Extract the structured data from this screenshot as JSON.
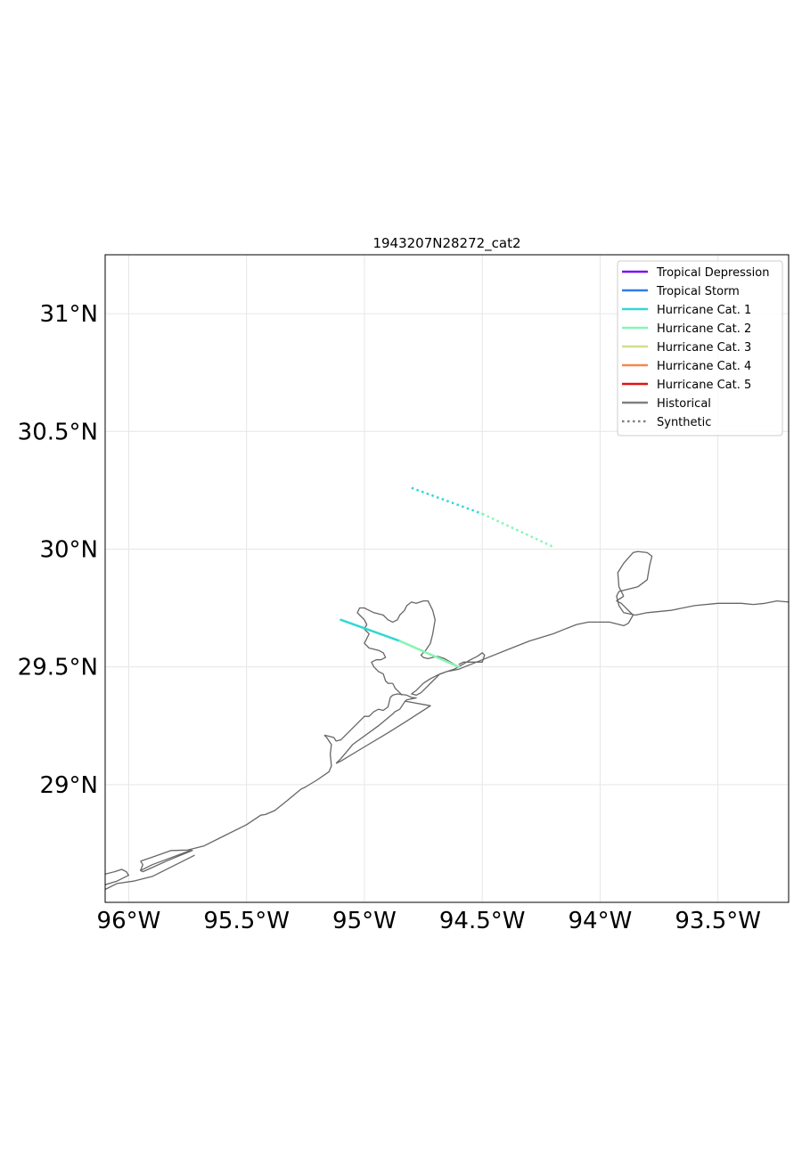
{
  "chart_data": {
    "type": "map",
    "title": "1943207N28272_cat2",
    "xlim": [
      -96.1,
      -93.2
    ],
    "ylim": [
      28.5,
      31.25
    ],
    "x_ticks": [
      {
        "value": -96.0,
        "label": "96°W"
      },
      {
        "value": -95.5,
        "label": "95.5°W"
      },
      {
        "value": -95.0,
        "label": "95°W"
      },
      {
        "value": -94.5,
        "label": "94.5°W"
      },
      {
        "value": -94.0,
        "label": "94°W"
      },
      {
        "value": -93.5,
        "label": "93.5°W"
      }
    ],
    "y_ticks": [
      {
        "value": 29.0,
        "label": "29°N"
      },
      {
        "value": 29.5,
        "label": "29.5°N"
      },
      {
        "value": 30.0,
        "label": "30°N"
      },
      {
        "value": 30.5,
        "label": "30.5°N"
      },
      {
        "value": 31.0,
        "label": "31°N"
      }
    ],
    "grid": true,
    "legend_position": "top-right",
    "legend": [
      {
        "label": "Tropical Depression",
        "color": "#7a0ff0",
        "style": "solid"
      },
      {
        "label": "Tropical Storm",
        "color": "#2f7fe6",
        "style": "solid"
      },
      {
        "label": "Hurricane Cat. 1",
        "color": "#33d6d6",
        "style": "solid"
      },
      {
        "label": "Hurricane Cat. 2",
        "color": "#86f5b3",
        "style": "solid"
      },
      {
        "label": "Hurricane Cat. 3",
        "color": "#cfe08f",
        "style": "solid"
      },
      {
        "label": "Hurricane Cat. 4",
        "color": "#f5884d",
        "style": "solid"
      },
      {
        "label": "Hurricane Cat. 5",
        "color": "#e01414",
        "style": "solid"
      },
      {
        "label": "Historical",
        "color": "#808080",
        "style": "solid"
      },
      {
        "label": "Synthetic",
        "color": "#808080",
        "style": "dotted"
      }
    ],
    "tracks": [
      {
        "name": "historical",
        "style": "solid",
        "segments": [
          {
            "from": [
              -95.1,
              29.7
            ],
            "to": [
              -94.85,
              29.61
            ],
            "color": "#33d6d6"
          },
          {
            "from": [
              -94.85,
              29.61
            ],
            "to": [
              -94.6,
              29.5
            ],
            "color": "#86f5b3"
          }
        ]
      },
      {
        "name": "synthetic",
        "style": "dotted",
        "segments": [
          {
            "from": [
              -94.8,
              30.26
            ],
            "to": [
              -94.5,
              30.15
            ],
            "color": "#33d6d6"
          },
          {
            "from": [
              -94.5,
              30.15
            ],
            "to": [
              -94.2,
              30.01
            ],
            "color": "#86f5b3"
          }
        ]
      }
    ],
    "coastlines": [
      [
        [
          -96.1,
          28.555
        ],
        [
          -96.05,
          28.58
        ],
        [
          -95.98,
          28.59
        ],
        [
          -95.9,
          28.61
        ],
        [
          -95.82,
          28.65
        ],
        [
          -95.72,
          28.7
        ]
      ],
      [
        [
          -96.1,
          28.62
        ],
        [
          -96.06,
          28.63
        ],
        [
          -96.03,
          28.64
        ],
        [
          -96.01,
          28.63
        ],
        [
          -96.0,
          28.615
        ],
        [
          -96.05,
          28.59
        ],
        [
          -96.1,
          28.575
        ]
      ],
      [
        [
          -95.95,
          28.635
        ],
        [
          -95.9,
          28.66
        ],
        [
          -95.82,
          28.69
        ],
        [
          -95.74,
          28.72
        ],
        [
          -95.73,
          28.72
        ],
        [
          -95.78,
          28.7
        ],
        [
          -95.84,
          28.675
        ],
        [
          -95.9,
          28.648
        ],
        [
          -95.94,
          28.63
        ],
        [
          -95.95,
          28.635
        ],
        [
          -95.94,
          28.66
        ],
        [
          -95.95,
          28.675
        ]
      ],
      [
        [
          -95.95,
          28.675
        ],
        [
          -95.89,
          28.695
        ],
        [
          -95.82,
          28.72
        ],
        [
          -95.75,
          28.722
        ],
        [
          -95.68,
          28.74
        ],
        [
          -95.6,
          28.78
        ],
        [
          -95.5,
          28.83
        ],
        [
          -95.44,
          28.87
        ],
        [
          -95.42,
          28.873
        ],
        [
          -95.38,
          28.89
        ],
        [
          -95.33,
          28.93
        ],
        [
          -95.27,
          28.98
        ],
        [
          -95.25,
          28.99
        ],
        [
          -95.2,
          29.02
        ],
        [
          -95.15,
          29.055
        ],
        [
          -95.14,
          29.08
        ],
        [
          -95.145,
          29.13
        ],
        [
          -95.14,
          29.17
        ],
        [
          -95.16,
          29.2
        ],
        [
          -95.17,
          29.21
        ]
      ],
      [
        [
          -95.17,
          29.21
        ],
        [
          -95.13,
          29.2
        ],
        [
          -95.12,
          29.185
        ],
        [
          -95.1,
          29.19
        ],
        [
          -95.04,
          29.25
        ],
        [
          -95.0,
          29.29
        ],
        [
          -94.98,
          29.29
        ],
        [
          -94.96,
          29.31
        ],
        [
          -94.94,
          29.32
        ],
        [
          -94.92,
          29.315
        ],
        [
          -94.9,
          29.33
        ],
        [
          -94.89,
          29.37
        ],
        [
          -94.88,
          29.38
        ],
        [
          -94.86,
          29.385
        ],
        [
          -94.82,
          29.38
        ],
        [
          -94.8,
          29.37
        ],
        [
          -94.78,
          29.368
        ],
        [
          -94.82,
          29.36
        ],
        [
          -94.83,
          29.35
        ],
        [
          -94.85,
          29.32
        ],
        [
          -94.87,
          29.31
        ],
        [
          -94.88,
          29.3
        ],
        [
          -94.94,
          29.25
        ],
        [
          -95.05,
          29.17
        ],
        [
          -95.1,
          29.11
        ],
        [
          -95.12,
          29.09
        ]
      ],
      [
        [
          -95.12,
          29.09
        ],
        [
          -95.1,
          29.1
        ],
        [
          -95.0,
          29.16
        ],
        [
          -94.9,
          29.22
        ],
        [
          -94.82,
          29.27
        ],
        [
          -94.72,
          29.335
        ],
        [
          -94.83,
          29.355
        ]
      ],
      [
        [
          -94.6,
          29.5
        ],
        [
          -94.62,
          29.49
        ],
        [
          -94.65,
          29.48
        ],
        [
          -94.68,
          29.47
        ],
        [
          -94.7,
          29.45
        ],
        [
          -94.72,
          29.43
        ],
        [
          -94.74,
          29.41
        ],
        [
          -94.76,
          29.39
        ],
        [
          -94.78,
          29.38
        ],
        [
          -94.8,
          29.385
        ],
        [
          -94.78,
          29.4
        ],
        [
          -94.75,
          29.43
        ],
        [
          -94.72,
          29.45
        ],
        [
          -94.69,
          29.465
        ],
        [
          -94.65,
          29.48
        ],
        [
          -94.6,
          29.49
        ],
        [
          -94.5,
          29.53
        ],
        [
          -94.4,
          29.57
        ],
        [
          -94.3,
          29.61
        ],
        [
          -94.2,
          29.64
        ],
        [
          -94.15,
          29.66
        ],
        [
          -94.1,
          29.68
        ],
        [
          -94.05,
          29.69
        ],
        [
          -94.0,
          29.69
        ],
        [
          -93.96,
          29.69
        ],
        [
          -93.9,
          29.675
        ],
        [
          -93.88,
          29.685
        ],
        [
          -93.86,
          29.72
        ],
        [
          -93.91,
          29.77
        ],
        [
          -93.93,
          29.78
        ],
        [
          -93.9,
          29.8
        ]
      ],
      [
        [
          -93.9,
          29.8
        ],
        [
          -93.92,
          29.84
        ],
        [
          -93.925,
          29.9
        ],
        [
          -93.9,
          29.94
        ],
        [
          -93.86,
          29.985
        ],
        [
          -93.84,
          29.99
        ],
        [
          -93.8,
          29.985
        ],
        [
          -93.78,
          29.97
        ],
        [
          -93.79,
          29.93
        ],
        [
          -93.8,
          29.87
        ],
        [
          -93.84,
          29.84
        ],
        [
          -93.88,
          29.83
        ],
        [
          -93.92,
          29.82
        ],
        [
          -93.93,
          29.8
        ],
        [
          -93.92,
          29.76
        ],
        [
          -93.9,
          29.73
        ],
        [
          -93.85,
          29.72
        ],
        [
          -93.8,
          29.73
        ],
        [
          -93.7,
          29.74
        ],
        [
          -93.6,
          29.76
        ],
        [
          -93.5,
          29.77
        ],
        [
          -93.4,
          29.77
        ],
        [
          -93.35,
          29.765
        ],
        [
          -93.3,
          29.77
        ],
        [
          -93.25,
          29.78
        ],
        [
          -93.2,
          29.775
        ]
      ],
      [
        [
          -94.6,
          29.5
        ],
        [
          -94.55,
          29.53
        ],
        [
          -94.52,
          29.545
        ],
        [
          -94.5,
          29.56
        ],
        [
          -94.49,
          29.55
        ],
        [
          -94.5,
          29.52
        ],
        [
          -94.53,
          29.52
        ],
        [
          -94.56,
          29.52
        ],
        [
          -94.58,
          29.52
        ],
        [
          -94.6,
          29.51
        ]
      ],
      [
        [
          -94.6,
          29.5
        ],
        [
          -94.66,
          29.535
        ],
        [
          -94.69,
          29.545
        ],
        [
          -94.73,
          29.535
        ],
        [
          -94.75,
          29.54
        ],
        [
          -94.76,
          29.55
        ],
        [
          -94.74,
          29.57
        ],
        [
          -94.72,
          29.6
        ],
        [
          -94.71,
          29.64
        ],
        [
          -94.7,
          29.7
        ],
        [
          -94.71,
          29.74
        ],
        [
          -94.73,
          29.78
        ],
        [
          -94.75,
          29.78
        ],
        [
          -94.78,
          29.77
        ],
        [
          -94.8,
          29.775
        ],
        [
          -94.82,
          29.76
        ],
        [
          -94.83,
          29.74
        ],
        [
          -94.85,
          29.72
        ],
        [
          -94.86,
          29.7
        ],
        [
          -94.88,
          29.69
        ],
        [
          -94.9,
          29.7
        ],
        [
          -94.92,
          29.72
        ],
        [
          -94.96,
          29.73
        ],
        [
          -94.99,
          29.745
        ],
        [
          -95.0,
          29.75
        ],
        [
          -95.02,
          29.75
        ],
        [
          -95.03,
          29.73
        ],
        [
          -95.02,
          29.72
        ],
        [
          -95.0,
          29.7
        ],
        [
          -94.99,
          29.68
        ],
        [
          -95.0,
          29.66
        ],
        [
          -94.98,
          29.64
        ],
        [
          -94.99,
          29.62
        ],
        [
          -95.0,
          29.6
        ],
        [
          -94.98,
          29.58
        ],
        [
          -94.94,
          29.57
        ],
        [
          -94.92,
          29.56
        ],
        [
          -94.91,
          29.54
        ],
        [
          -94.93,
          29.53
        ],
        [
          -94.95,
          29.53
        ],
        [
          -94.97,
          29.52
        ],
        [
          -94.96,
          29.5
        ],
        [
          -94.94,
          29.48
        ],
        [
          -94.92,
          29.47
        ],
        [
          -94.91,
          29.44
        ],
        [
          -94.9,
          29.43
        ],
        [
          -94.88,
          29.43
        ]
      ],
      [
        [
          -94.88,
          29.43
        ],
        [
          -94.87,
          29.41
        ],
        [
          -94.85,
          29.39
        ],
        [
          -94.84,
          29.38
        ]
      ]
    ]
  }
}
